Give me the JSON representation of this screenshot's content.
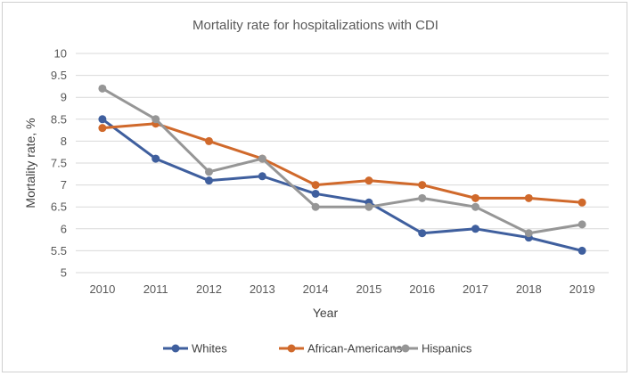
{
  "chart_data": {
    "type": "line",
    "title": "Mortality rate for hospitalizations with CDI",
    "xlabel": "Year",
    "ylabel": "Mortality rate, %",
    "categories": [
      "2010",
      "2011",
      "2012",
      "2013",
      "2014",
      "2015",
      "2016",
      "2017",
      "2018",
      "2019"
    ],
    "ylim": [
      5,
      10
    ],
    "ytick_step": 0.5,
    "yticks": [
      "5",
      "5.5",
      "6",
      "6.5",
      "7",
      "7.5",
      "8",
      "8.5",
      "9",
      "9.5",
      "10"
    ],
    "grid": true,
    "legend_position": "bottom",
    "series": [
      {
        "name": "Whites",
        "color": "#3f5f9e",
        "values": [
          8.5,
          7.6,
          7.1,
          7.2,
          6.8,
          6.6,
          5.9,
          6.0,
          5.8,
          5.5
        ]
      },
      {
        "name": "African-Americans",
        "color": "#d0692b",
        "values": [
          8.3,
          8.4,
          8.0,
          7.6,
          7.0,
          7.1,
          7.0,
          6.7,
          6.7,
          6.6
        ]
      },
      {
        "name": "Hispanics",
        "color": "#969696",
        "values": [
          9.2,
          8.5,
          7.3,
          7.6,
          6.5,
          6.5,
          6.7,
          6.5,
          5.9,
          6.1
        ]
      }
    ]
  }
}
